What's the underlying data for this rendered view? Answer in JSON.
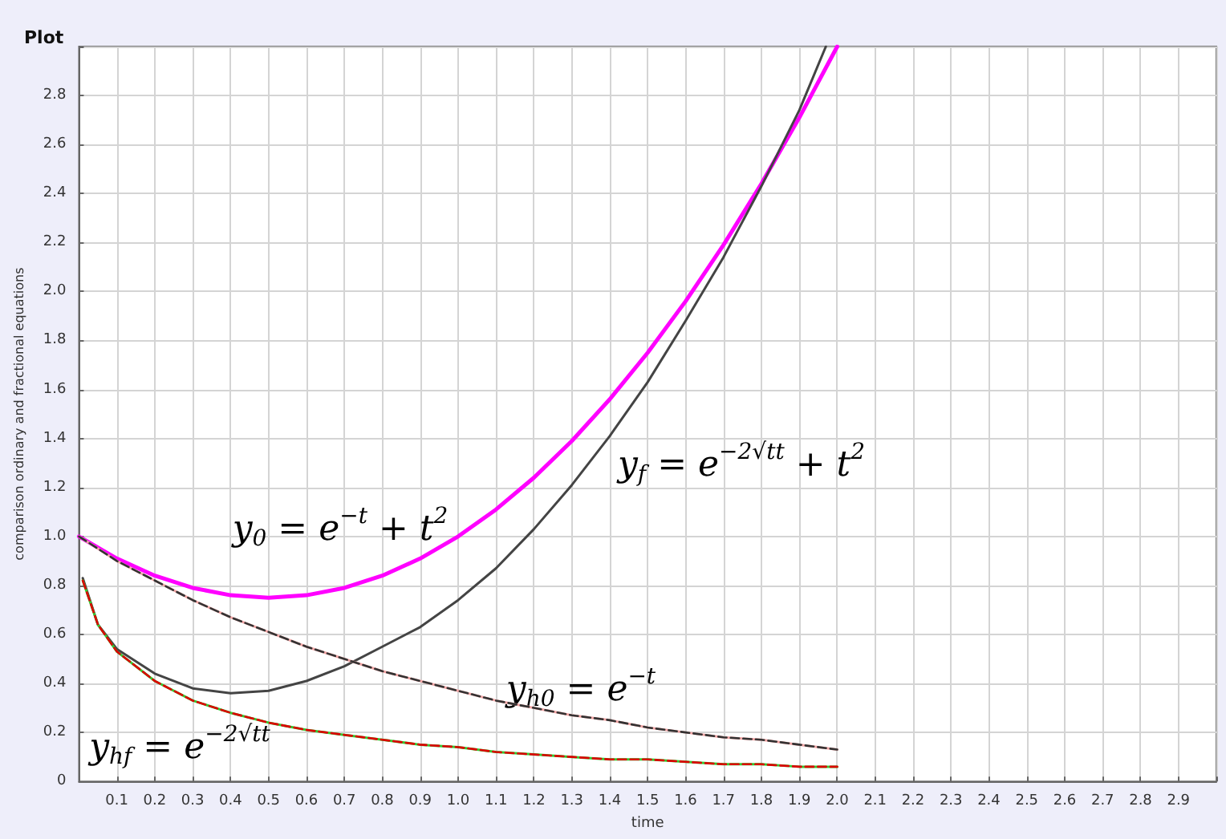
{
  "chart_data": {
    "type": "line",
    "title": "Plot",
    "xlabel": "time",
    "ylabel": "comparison ordinary and fractional equations",
    "series": [
      {
        "color": "#ff00ff",
        "x": [
          0,
          0.1,
          0.2,
          0.3,
          0.4,
          0.5,
          0.6,
          0.7,
          0.8,
          0.9,
          1.0,
          1.1,
          1.2,
          1.3,
          1.4,
          1.5,
          1.6,
          1.7,
          1.8,
          1.9,
          2.0
        ],
        "values": [
          1.0,
          0.91,
          0.84,
          0.79,
          0.76,
          0.75,
          0.76,
          0.79,
          0.84,
          0.91,
          1.0,
          1.11,
          1.24,
          1.39,
          1.56,
          1.75,
          1.96,
          2.19,
          2.44,
          2.71,
          3.0
        ]
      },
      {
        "color": "#444444",
        "x": [
          0.01,
          0.05,
          0.1,
          0.2,
          0.3,
          0.4,
          0.5,
          0.6,
          0.7,
          0.8,
          0.9,
          1.0,
          1.1,
          1.2,
          1.3,
          1.4,
          1.5,
          1.6,
          1.7,
          1.8,
          1.9,
          1.97
        ],
        "values": [
          0.83,
          0.64,
          0.54,
          0.44,
          0.38,
          0.36,
          0.37,
          0.41,
          0.47,
          0.55,
          0.63,
          0.74,
          0.87,
          1.03,
          1.21,
          1.41,
          1.63,
          1.88,
          2.14,
          2.43,
          2.74,
          3.0
        ]
      },
      {
        "color": "#f4a8a8",
        "x": [
          0,
          0.1,
          0.2,
          0.3,
          0.4,
          0.5,
          0.6,
          0.7,
          0.8,
          0.9,
          1.0,
          1.1,
          1.2,
          1.3,
          1.4,
          1.5,
          1.6,
          1.7,
          1.8,
          1.9,
          2.0
        ],
        "values": [
          1.0,
          0.9,
          0.82,
          0.74,
          0.67,
          0.61,
          0.55,
          0.5,
          0.45,
          0.41,
          0.37,
          0.33,
          0.3,
          0.27,
          0.25,
          0.22,
          0.2,
          0.18,
          0.17,
          0.15,
          0.13
        ]
      },
      {
        "color": "#333333",
        "line_style": "dashed",
        "x": [
          0,
          0.1,
          0.2,
          0.3,
          0.4,
          0.5,
          0.6,
          0.7,
          0.8,
          0.9,
          1.0,
          1.1,
          1.2,
          1.3,
          1.4,
          1.5,
          1.6,
          1.7,
          1.8,
          1.9,
          2.0
        ],
        "values": [
          1.0,
          0.9,
          0.82,
          0.74,
          0.67,
          0.61,
          0.55,
          0.5,
          0.45,
          0.41,
          0.37,
          0.33,
          0.3,
          0.27,
          0.25,
          0.22,
          0.2,
          0.18,
          0.17,
          0.15,
          0.13
        ]
      },
      {
        "color": "#33cc33",
        "x": [
          0.01,
          0.05,
          0.1,
          0.2,
          0.3,
          0.4,
          0.5,
          0.6,
          0.7,
          0.8,
          0.9,
          1.0,
          1.1,
          1.2,
          1.3,
          1.4,
          1.5,
          1.6,
          1.7,
          1.8,
          1.9,
          2.0
        ],
        "values": [
          0.82,
          0.64,
          0.53,
          0.41,
          0.33,
          0.28,
          0.24,
          0.21,
          0.19,
          0.17,
          0.15,
          0.14,
          0.12,
          0.11,
          0.1,
          0.09,
          0.09,
          0.08,
          0.07,
          0.07,
          0.06,
          0.06
        ]
      },
      {
        "color": "#dd0000",
        "line_style": "dashed",
        "x": [
          0.01,
          0.05,
          0.1,
          0.2,
          0.3,
          0.4,
          0.5,
          0.6,
          0.7,
          0.8,
          0.9,
          1.0,
          1.1,
          1.2,
          1.3,
          1.4,
          1.5,
          1.6,
          1.7,
          1.8,
          1.9,
          2.0
        ],
        "values": [
          0.82,
          0.64,
          0.53,
          0.41,
          0.33,
          0.28,
          0.24,
          0.21,
          0.19,
          0.17,
          0.15,
          0.14,
          0.12,
          0.11,
          0.1,
          0.09,
          0.09,
          0.08,
          0.07,
          0.07,
          0.06,
          0.06
        ]
      }
    ],
    "annotations": [
      "y$_{0}$ = e$^{−t}$ + t$^{2}$",
      "y$_{f}$ = e$^{−2√tt}$ + t$^{2}$",
      "y$_{h0}$ = e$^{−t}$",
      "y$_{hf}$ = e$^{−2√tt}$"
    ],
    "xlim": [
      0,
      3
    ],
    "ylim": [
      0,
      3
    ],
    "xticks": [
      {
        "value": 0,
        "label": null
      },
      0.1,
      0.2,
      0.3,
      0.4,
      0.5,
      0.6,
      0.7,
      0.8,
      0.9,
      {
        "value": 1,
        "label": "1.0"
      },
      1.1,
      1.2,
      1.3,
      1.4,
      1.5,
      1.6,
      1.7,
      1.8,
      1.9,
      {
        "value": 2,
        "label": "2.0"
      },
      2.1,
      2.2,
      2.3,
      2.4,
      2.5,
      2.6,
      2.7,
      2.8,
      2.9,
      {
        "value": 3,
        "label": null
      }
    ],
    "yticks": [
      0,
      0.2,
      0.4,
      0.6,
      0.8,
      {
        "value": 1,
        "label": "1.0"
      },
      1.2,
      1.4,
      1.6,
      1.8,
      {
        "value": 2,
        "label": "2.0"
      },
      2.2,
      2.4,
      2.6,
      2.8,
      {
        "value": 3,
        "label": null
      }
    ],
    "grid": true,
    "marker": "none"
  }
}
